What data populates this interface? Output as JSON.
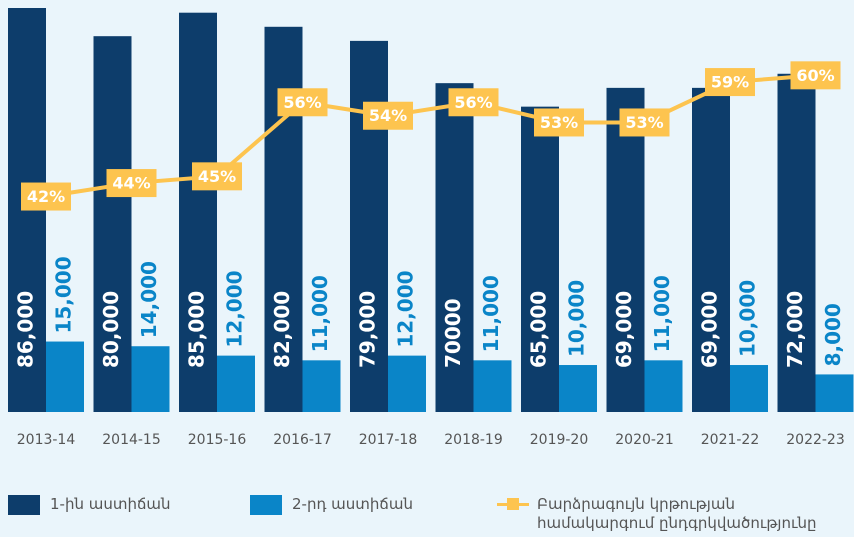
{
  "chart_data": {
    "type": "bar",
    "categories": [
      "2013-14",
      "2014-15",
      "2015-16",
      "2016-17",
      "2017-18",
      "2018-19",
      "2019-20",
      "2020-21",
      "2021-22",
      "2022-23"
    ],
    "series": [
      {
        "name": "1-ին աստիճան",
        "color": "#0d3d6b",
        "values": [
          86000,
          80000,
          85000,
          82000,
          79000,
          70000,
          65000,
          69000,
          69000,
          72000
        ],
        "value_labels": [
          "86,000",
          "80,000",
          "85,000",
          "82,000",
          "79,000",
          "70000",
          "65,000",
          "69,000",
          "69,000",
          "72,000"
        ]
      },
      {
        "name": "2-րդ աստիճան",
        "color": "#0a85c8",
        "values": [
          15000,
          14000,
          12000,
          11000,
          12000,
          11000,
          10000,
          11000,
          10000,
          8000
        ],
        "value_labels": [
          "15,000",
          "14,000",
          "12,000",
          "11,000",
          "12,000",
          "11,000",
          "10,000",
          "11,000",
          "10,000",
          "8,000"
        ]
      },
      {
        "name": "Բարձրագույն կրթության համակարգում ընդգրկվածությունը",
        "color": "#fdc44f",
        "type": "line",
        "axis": "y2",
        "values": [
          42,
          44,
          45,
          56,
          54,
          56,
          53,
          53,
          59,
          60
        ],
        "value_labels": [
          "42%",
          "44%",
          "45%",
          "56%",
          "54%",
          "56%",
          "53%",
          "53%",
          "59%",
          "60%"
        ]
      }
    ],
    "ylim": [
      0,
      86000
    ],
    "y2lim": [
      10,
      70
    ]
  }
}
